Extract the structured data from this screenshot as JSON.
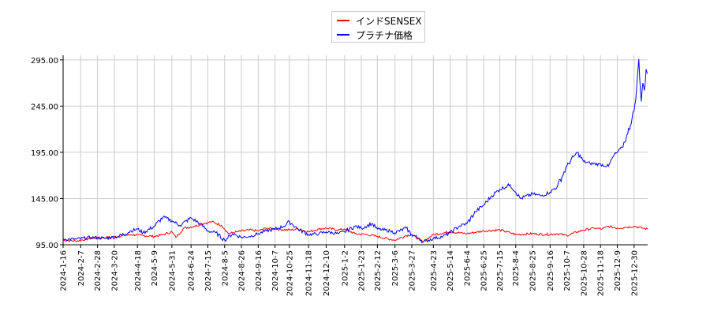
{
  "chart_data": {
    "type": "line",
    "title": "",
    "xlabel": "",
    "ylabel": "",
    "ylim": [
      95,
      300
    ],
    "yticks": [
      95.0,
      145.0,
      195.0,
      245.0,
      295.0
    ],
    "ytick_labels": [
      "95.00",
      "145.00",
      "195.00",
      "245.00",
      "295.00"
    ],
    "x_range": [
      "2024-01-16",
      "2026-01-16"
    ],
    "xticks": [
      "2024-1-16",
      "2024-2-7",
      "2024-2-28",
      "2024-3-20",
      "2024-4-18",
      "2024-5-9",
      "2024-5-31",
      "2024-6-24",
      "2024-7-15",
      "2024-8-5",
      "2024-8-26",
      "2024-9-16",
      "2024-10-7",
      "2024-10-25",
      "2024-11-18",
      "2024-12-10",
      "2025-1-2",
      "2025-1-23",
      "2025-2-12",
      "2025-3-6",
      "2025-3-27",
      "2025-4-23",
      "2025-5-14",
      "2025-6-4",
      "2025-6-25",
      "2025-7-15",
      "2025-8-4",
      "2025-8-25",
      "2025-9-16",
      "2025-10-7",
      "2025-10-28",
      "2025-11-18",
      "2025-12-9",
      "2025-12-30"
    ],
    "grid": true,
    "legend_position": "top-center",
    "series": [
      {
        "name": "インドSENSEX",
        "color": "#ff0000",
        "points": [
          [
            "2024-01-16",
            100
          ],
          [
            "2024-02-01",
            99
          ],
          [
            "2024-02-20",
            102
          ],
          [
            "2024-03-10",
            103
          ],
          [
            "2024-03-25",
            104
          ],
          [
            "2024-04-10",
            106
          ],
          [
            "2024-04-25",
            105
          ],
          [
            "2024-05-09",
            104
          ],
          [
            "2024-05-20",
            106
          ],
          [
            "2024-05-31",
            109
          ],
          [
            "2024-06-05",
            103
          ],
          [
            "2024-06-15",
            113
          ],
          [
            "2024-06-28",
            115
          ],
          [
            "2024-07-10",
            118
          ],
          [
            "2024-07-20",
            120
          ],
          [
            "2024-08-01",
            116
          ],
          [
            "2024-08-05",
            112
          ],
          [
            "2024-08-10",
            107
          ],
          [
            "2024-08-20",
            109
          ],
          [
            "2024-09-05",
            111
          ],
          [
            "2024-09-16",
            110
          ],
          [
            "2024-09-26",
            113
          ],
          [
            "2024-10-07",
            112
          ],
          [
            "2024-10-25",
            111
          ],
          [
            "2024-11-05",
            112
          ],
          [
            "2024-11-18",
            109
          ],
          [
            "2024-12-01",
            112
          ],
          [
            "2024-12-10",
            113
          ],
          [
            "2024-12-25",
            111
          ],
          [
            "2025-01-02",
            112
          ],
          [
            "2025-01-15",
            107
          ],
          [
            "2025-01-30",
            106
          ],
          [
            "2025-02-12",
            104
          ],
          [
            "2025-02-28",
            101
          ],
          [
            "2025-03-06",
            100
          ],
          [
            "2025-03-20",
            105
          ],
          [
            "2025-03-27",
            106
          ],
          [
            "2025-04-05",
            101
          ],
          [
            "2025-04-10",
            98
          ],
          [
            "2025-04-23",
            106
          ],
          [
            "2025-05-14",
            109
          ],
          [
            "2025-06-04",
            107
          ],
          [
            "2025-06-25",
            110
          ],
          [
            "2025-07-15",
            111
          ],
          [
            "2025-07-28",
            108
          ],
          [
            "2025-08-04",
            106
          ],
          [
            "2025-08-25",
            107
          ],
          [
            "2025-09-10",
            106
          ],
          [
            "2025-09-25",
            107
          ],
          [
            "2025-10-07",
            105
          ],
          [
            "2025-10-20",
            109
          ],
          [
            "2025-10-28",
            111
          ],
          [
            "2025-11-10",
            113
          ],
          [
            "2025-11-20",
            112
          ],
          [
            "2025-11-28",
            115
          ],
          [
            "2025-12-09",
            113
          ],
          [
            "2025-12-20",
            114
          ],
          [
            "2025-12-30",
            115
          ],
          [
            "2026-01-10",
            113
          ],
          [
            "2026-01-16",
            112
          ]
        ]
      },
      {
        "name": "プラチナ価格",
        "color": "#0000ff",
        "points": [
          [
            "2024-01-16",
            101
          ],
          [
            "2024-02-01",
            101
          ],
          [
            "2024-02-20",
            103
          ],
          [
            "2024-03-10",
            102
          ],
          [
            "2024-03-25",
            104
          ],
          [
            "2024-04-10",
            110
          ],
          [
            "2024-04-18",
            112
          ],
          [
            "2024-04-25",
            108
          ],
          [
            "2024-05-09",
            115
          ],
          [
            "2024-05-20",
            125
          ],
          [
            "2024-05-31",
            121
          ],
          [
            "2024-06-10",
            116
          ],
          [
            "2024-06-24",
            124
          ],
          [
            "2024-07-05",
            118
          ],
          [
            "2024-07-15",
            110
          ],
          [
            "2024-07-25",
            108
          ],
          [
            "2024-08-05",
            100
          ],
          [
            "2024-08-15",
            107
          ],
          [
            "2024-08-26",
            103
          ],
          [
            "2024-09-05",
            104
          ],
          [
            "2024-09-16",
            107
          ],
          [
            "2024-09-26",
            110
          ],
          [
            "2024-10-07",
            112
          ],
          [
            "2024-10-18",
            115
          ],
          [
            "2024-10-25",
            120
          ],
          [
            "2024-11-05",
            112
          ],
          [
            "2024-11-18",
            106
          ],
          [
            "2024-12-01",
            107
          ],
          [
            "2024-12-10",
            109
          ],
          [
            "2024-12-25",
            107
          ],
          [
            "2025-01-02",
            109
          ],
          [
            "2025-01-15",
            115
          ],
          [
            "2025-01-23",
            113
          ],
          [
            "2025-02-05",
            118
          ],
          [
            "2025-02-12",
            112
          ],
          [
            "2025-02-28",
            110
          ],
          [
            "2025-03-06",
            108
          ],
          [
            "2025-03-20",
            113
          ],
          [
            "2025-03-27",
            106
          ],
          [
            "2025-04-05",
            102
          ],
          [
            "2025-04-10",
            98
          ],
          [
            "2025-04-23",
            102
          ],
          [
            "2025-05-05",
            104
          ],
          [
            "2025-05-14",
            108
          ],
          [
            "2025-05-25",
            115
          ],
          [
            "2025-06-04",
            118
          ],
          [
            "2025-06-15",
            131
          ],
          [
            "2025-06-25",
            138
          ],
          [
            "2025-07-05",
            148
          ],
          [
            "2025-07-15",
            155
          ],
          [
            "2025-07-28",
            160
          ],
          [
            "2025-08-04",
            152
          ],
          [
            "2025-08-10",
            145
          ],
          [
            "2025-08-25",
            150
          ],
          [
            "2025-09-05",
            148
          ],
          [
            "2025-09-16",
            152
          ],
          [
            "2025-09-25",
            158
          ],
          [
            "2025-10-07",
            180
          ],
          [
            "2025-10-15",
            190
          ],
          [
            "2025-10-20",
            195
          ],
          [
            "2025-10-28",
            185
          ],
          [
            "2025-11-05",
            183
          ],
          [
            "2025-11-18",
            182
          ],
          [
            "2025-11-28",
            180
          ],
          [
            "2025-12-05",
            192
          ],
          [
            "2025-12-09",
            195
          ],
          [
            "2025-12-15",
            200
          ],
          [
            "2025-12-22",
            215
          ],
          [
            "2025-12-30",
            240
          ],
          [
            "2026-01-02",
            262
          ],
          [
            "2026-01-04",
            285
          ],
          [
            "2026-01-05",
            296
          ],
          [
            "2026-01-06",
            275
          ],
          [
            "2026-01-08",
            250
          ],
          [
            "2026-01-10",
            270
          ],
          [
            "2026-01-12",
            262
          ],
          [
            "2026-01-14",
            285
          ],
          [
            "2026-01-16",
            280
          ]
        ]
      }
    ]
  }
}
